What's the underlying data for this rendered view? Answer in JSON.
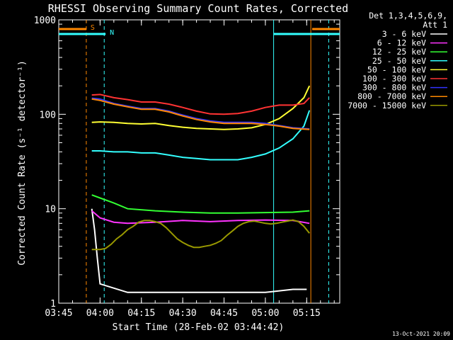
{
  "chart_data": {
    "type": "line",
    "title": "RHESSI Observing Summary Count Rates, Corrected",
    "xlabel": "Start Time (28-Feb-02 03:44:42)",
    "ylabel": "Corrected Count Rate (s⁻¹ detector⁻¹)",
    "yscale": "log",
    "xlim_min": [
      225,
      327
    ],
    "ylim": [
      1,
      1000
    ],
    "x_ticks": [
      {
        "t": 225,
        "label": "03:45"
      },
      {
        "t": 240,
        "label": "04:00"
      },
      {
        "t": 255,
        "label": "04:15"
      },
      {
        "t": 270,
        "label": "04:30"
      },
      {
        "t": 285,
        "label": "04:45"
      },
      {
        "t": 300,
        "label": "05:00"
      },
      {
        "t": 315,
        "label": "05:15"
      }
    ],
    "y_ticks": [
      {
        "v": 1,
        "label": "1"
      },
      {
        "v": 10,
        "label": "10"
      },
      {
        "v": 100,
        "label": "100"
      },
      {
        "v": 1000,
        "label": "1000"
      }
    ],
    "legend_header": [
      "Det 1,3,4,5,6,9,",
      "Att 1"
    ],
    "legend_position": "right",
    "series": [
      {
        "name": "3 - 6 keV",
        "color": "#ffffff",
        "x": [
          237,
          238,
          239,
          240,
          250,
          260,
          270,
          280,
          290,
          300,
          310,
          315
        ],
        "y": [
          10,
          6,
          3,
          1.6,
          1.3,
          1.3,
          1.3,
          1.3,
          1.3,
          1.3,
          1.4,
          1.4
        ]
      },
      {
        "name": "6 - 12 keV",
        "color": "#ff33ff",
        "x": [
          237,
          240,
          245,
          250,
          260,
          270,
          280,
          290,
          300,
          310,
          316
        ],
        "y": [
          9.5,
          8,
          7.2,
          7,
          7.2,
          7.5,
          7.3,
          7.5,
          7.6,
          7.5,
          7
        ]
      },
      {
        "name": "12 - 25 keV",
        "color": "#33ff33",
        "x": [
          237,
          240,
          245,
          250,
          260,
          270,
          280,
          290,
          300,
          310,
          316
        ],
        "y": [
          14,
          13,
          11.5,
          10,
          9.5,
          9.2,
          9,
          9,
          9.1,
          9.2,
          9.5
        ]
      },
      {
        "name": "25 - 50 keV",
        "color": "#33ffff",
        "x": [
          237,
          240,
          245,
          250,
          255,
          260,
          265,
          270,
          275,
          280,
          285,
          290,
          295,
          300,
          305,
          310,
          314,
          316
        ],
        "y": [
          41,
          41,
          40,
          40,
          39,
          39,
          37,
          35,
          34,
          33,
          33,
          33,
          35,
          38,
          44,
          55,
          75,
          110
        ]
      },
      {
        "name": "50 - 100 keV",
        "color": "#ffff33",
        "x": [
          237,
          240,
          245,
          250,
          255,
          260,
          265,
          270,
          275,
          280,
          285,
          290,
          295,
          300,
          305,
          310,
          314,
          316
        ],
        "y": [
          82,
          83,
          82,
          80,
          79,
          80,
          76,
          73,
          71,
          70,
          69,
          70,
          72,
          78,
          90,
          115,
          150,
          200
        ]
      },
      {
        "name": "100 - 300 keV",
        "color": "#ff3333",
        "x": [
          237,
          240,
          245,
          250,
          255,
          260,
          265,
          270,
          275,
          280,
          285,
          290,
          295,
          300,
          305,
          310,
          314,
          316
        ],
        "y": [
          160,
          162,
          150,
          143,
          135,
          135,
          128,
          118,
          108,
          101,
          100,
          102,
          108,
          118,
          125,
          125,
          130,
          150
        ]
      },
      {
        "name": "300 - 800 keV",
        "color": "#3333ff",
        "x": [
          237,
          240,
          245,
          250,
          255,
          260,
          265,
          270,
          275,
          280,
          285,
          290,
          295,
          300,
          305,
          310,
          316
        ],
        "y": [
          148,
          145,
          130,
          122,
          115,
          115,
          108,
          98,
          90,
          85,
          82,
          82,
          82,
          80,
          76,
          72,
          70
        ]
      },
      {
        "name": "800 - 7000 keV",
        "color": "#ff8800",
        "x": [
          237,
          240,
          245,
          250,
          255,
          260,
          265,
          270,
          275,
          280,
          285,
          290,
          295,
          300,
          305,
          310,
          316
        ],
        "y": [
          145,
          140,
          128,
          120,
          113,
          113,
          106,
          96,
          88,
          83,
          80,
          80,
          80,
          78,
          75,
          71,
          69
        ]
      },
      {
        "name": "7000 - 15000 keV",
        "color": "#999900",
        "x": [
          237,
          240,
          242,
          244,
          246,
          248,
          250,
          252,
          254,
          256,
          258,
          260,
          262,
          264,
          266,
          268,
          270,
          272,
          274,
          276,
          278,
          280,
          282,
          284,
          286,
          288,
          290,
          292,
          294,
          296,
          298,
          300,
          302,
          304,
          306,
          308,
          310,
          312,
          314,
          316
        ],
        "y": [
          3.7,
          3.7,
          3.8,
          4.2,
          4.8,
          5.3,
          6,
          6.5,
          7.2,
          7.5,
          7.5,
          7.3,
          7,
          6.3,
          5.5,
          4.8,
          4.4,
          4.1,
          3.9,
          3.9,
          4,
          4.1,
          4.3,
          4.6,
          5.2,
          5.8,
          6.5,
          7,
          7.3,
          7.4,
          7.2,
          7,
          6.9,
          7,
          7.2,
          7.4,
          7.6,
          7.3,
          6.5,
          5.5
        ]
      }
    ],
    "annotations": [
      {
        "label": "S",
        "color": "#ff8800",
        "x_start": 225,
        "x_end": 235
      },
      {
        "label": "N",
        "color": "#33ffff",
        "x_start": 225,
        "x_end": 242
      }
    ],
    "vertical_lines": [
      {
        "t": 235,
        "color": "#ff8800",
        "style": "dashed"
      },
      {
        "t": 241.5,
        "color": "#33ffff",
        "style": "dashed"
      },
      {
        "t": 303,
        "color": "#33ffff",
        "style": "solid"
      },
      {
        "t": 316.5,
        "color": "#ff8800",
        "style": "solid"
      },
      {
        "t": 323,
        "color": "#33ffff",
        "style": "dashed"
      }
    ],
    "right_flags": [
      {
        "color": "#ff8800",
        "x_start": 317,
        "x_end": 327
      },
      {
        "color": "#33ffff",
        "x_start": 303,
        "x_end": 327
      }
    ],
    "timestamp": "13-Oct-2021 20:09"
  }
}
